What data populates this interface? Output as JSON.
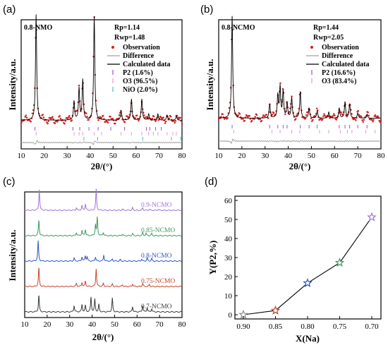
{
  "chart_data": [
    {
      "panel": "(a)",
      "type": "line",
      "sample_label": "0.8-NMO",
      "xlabel": "2θ/(°)",
      "ylabel": "Intensity/a.u.",
      "xlim": [
        10,
        80
      ],
      "x_ticks": [
        "10",
        "20",
        "30",
        "40",
        "50",
        "60",
        "70",
        "80"
      ],
      "fit_stats": [
        "Rp=1.14",
        "Rwp=1.48"
      ],
      "legend_placement": "top-right",
      "legend": [
        {
          "label": "Observation",
          "kind": "dot",
          "color": "#d42020"
        },
        {
          "label": "Difference",
          "kind": "line",
          "color": "#a0a0a0"
        },
        {
          "label": "Calculated data",
          "kind": "line",
          "color": "#000000"
        },
        {
          "label": "P2 (1.6%)",
          "kind": "tick",
          "color": "#9a4fd0"
        },
        {
          "label": "O3 (96.5%)",
          "kind": "tick",
          "color": "#e39ad8"
        },
        {
          "label": "NiO (2.0%)",
          "kind": "tick",
          "color": "#4fb8c8"
        }
      ],
      "peaks": [
        [
          16.5,
          1.0
        ],
        [
          33.0,
          0.18
        ],
        [
          35.2,
          0.3
        ],
        [
          36.8,
          0.38
        ],
        [
          41.8,
          0.98
        ],
        [
          53.5,
          0.09
        ],
        [
          58.0,
          0.2
        ],
        [
          62.5,
          0.2
        ],
        [
          65.5,
          0.06
        ],
        [
          69.5,
          0.06
        ],
        [
          73.5,
          0.05
        ],
        [
          77.5,
          0.04
        ]
      ],
      "tick_rows": [
        {
          "color": "#9a4fd0",
          "positions": [
            16.0,
            32.5,
            35.5,
            39.5,
            43.5,
            49.0,
            55.0,
            64.5,
            66.0,
            68.5,
            71.0
          ]
        },
        {
          "color": "#e39ad8",
          "positions": [
            16.5,
            33.0,
            35.2,
            36.8,
            41.8,
            45.0,
            53.5,
            58.0,
            62.5,
            65.5,
            67.5,
            69.5,
            73.5,
            76.0,
            77.5
          ]
        },
        {
          "color": "#4fb8c8",
          "positions": [
            37.3,
            43.3,
            62.9,
            75.4,
            79.4
          ]
        }
      ]
    },
    {
      "panel": "(b)",
      "type": "line",
      "sample_label": "0.8-NCMO",
      "xlabel": "2θ/(°)",
      "ylabel": "Intensity/a.u.",
      "xlim": [
        10,
        80
      ],
      "x_ticks": [
        "10",
        "20",
        "30",
        "40",
        "50",
        "60",
        "70",
        "80"
      ],
      "fit_stats": [
        "Rp=1.44",
        "Rwp=2.05"
      ],
      "legend_placement": "top-right",
      "legend": [
        {
          "label": "Observation",
          "kind": "dot",
          "color": "#d42020"
        },
        {
          "label": "Difference",
          "kind": "line",
          "color": "#a0a0a0"
        },
        {
          "label": "Calculated data",
          "kind": "line",
          "color": "#000000"
        },
        {
          "label": "P2 (16.6%)",
          "kind": "tick",
          "color": "#9a4fd0"
        },
        {
          "label": "O3 (83.4%)",
          "kind": "tick",
          "color": "#e39ad8"
        }
      ],
      "peaks": [
        [
          15.8,
          1.0
        ],
        [
          32.0,
          0.14
        ],
        [
          35.5,
          0.22
        ],
        [
          36.5,
          0.3
        ],
        [
          37.8,
          0.26
        ],
        [
          39.5,
          0.15
        ],
        [
          41.5,
          0.2
        ],
        [
          45.2,
          0.26
        ],
        [
          49.0,
          0.1
        ],
        [
          52.5,
          0.07
        ],
        [
          57.5,
          0.06
        ],
        [
          62.0,
          0.1
        ],
        [
          64.5,
          0.16
        ],
        [
          66.5,
          0.14
        ],
        [
          70.0,
          0.05
        ],
        [
          74.0,
          0.04
        ]
      ],
      "tick_rows": [
        {
          "color": "#9a4fd0",
          "positions": [
            15.8,
            32.0,
            35.5,
            37.8,
            39.5,
            45.2,
            49.0,
            52.5,
            62.0,
            64.5,
            66.5,
            70.0,
            74.0
          ]
        },
        {
          "color": "#e39ad8",
          "positions": [
            16.5,
            33.0,
            36.5,
            41.5,
            45.0,
            53.5,
            57.5,
            62.5,
            65.5,
            67.5,
            73.5,
            77.5
          ]
        }
      ]
    },
    {
      "panel": "(c)",
      "type": "line",
      "xlabel": "2θ/(°)",
      "ylabel": "Intensity/a.u.",
      "xlim": [
        10,
        80
      ],
      "x_ticks": [
        "10",
        "20",
        "30",
        "40",
        "50",
        "60",
        "70",
        "80"
      ],
      "series": [
        {
          "name": "0.7-NCMO",
          "color": "#3a3a3a",
          "peaks": [
            [
              16.3,
              0.8
            ],
            [
              32.0,
              0.3
            ],
            [
              35.5,
              0.35
            ],
            [
              37.0,
              0.3
            ],
            [
              39.5,
              0.7
            ],
            [
              41.2,
              0.6
            ],
            [
              43.0,
              0.35
            ],
            [
              49.0,
              0.65
            ],
            [
              58.0,
              0.25
            ],
            [
              62.5,
              0.3
            ],
            [
              64.5,
              0.2
            ],
            [
              66.5,
              0.15
            ]
          ]
        },
        {
          "name": "0.75-NCMO",
          "color": "#c8442e",
          "peaks": [
            [
              16.3,
              0.9
            ],
            [
              33.0,
              0.15
            ],
            [
              35.5,
              0.2
            ],
            [
              37.0,
              0.25
            ],
            [
              41.8,
              0.85
            ],
            [
              45.0,
              0.15
            ],
            [
              49.0,
              0.12
            ],
            [
              53.5,
              0.08
            ],
            [
              58.0,
              0.12
            ],
            [
              62.5,
              0.15
            ],
            [
              65.5,
              0.1
            ]
          ]
        },
        {
          "name": "0.8-NCMO",
          "color": "#2f56c2",
          "peaks": [
            [
              16.0,
              0.95
            ],
            [
              32.0,
              0.15
            ],
            [
              35.5,
              0.2
            ],
            [
              37.0,
              0.25
            ],
            [
              37.8,
              0.2
            ],
            [
              41.5,
              0.2
            ],
            [
              45.2,
              0.28
            ],
            [
              49.0,
              0.1
            ],
            [
              52.5,
              0.07
            ],
            [
              62.0,
              0.1
            ],
            [
              64.5,
              0.15
            ],
            [
              66.5,
              0.12
            ]
          ]
        },
        {
          "name": "0.85-NCMO",
          "color": "#3d9a5a",
          "peaks": [
            [
              16.3,
              0.75
            ],
            [
              33.0,
              0.15
            ],
            [
              35.5,
              0.25
            ],
            [
              37.0,
              0.3
            ],
            [
              41.5,
              0.5
            ],
            [
              42.3,
              0.85
            ],
            [
              45.0,
              0.15
            ],
            [
              53.5,
              0.08
            ],
            [
              58.0,
              0.1
            ],
            [
              62.5,
              0.15
            ],
            [
              64.0,
              0.12
            ],
            [
              66.5,
              0.1
            ]
          ]
        },
        {
          "name": "0.9-NCMO",
          "color": "#a074d6",
          "peaks": [
            [
              16.5,
              1.0
            ],
            [
              33.0,
              0.12
            ],
            [
              35.5,
              0.22
            ],
            [
              37.0,
              0.3
            ],
            [
              41.8,
              1.0
            ],
            [
              53.5,
              0.06
            ],
            [
              58.0,
              0.12
            ],
            [
              62.5,
              0.12
            ],
            [
              65.5,
              0.06
            ],
            [
              69.5,
              0.05
            ]
          ]
        }
      ]
    },
    {
      "panel": "(d)",
      "type": "scatter",
      "xlabel": "X(Na)",
      "ylabel": "Y(P2,%)",
      "categories": [
        "0.90",
        "0.85",
        "0.80",
        "0.75",
        "0.70"
      ],
      "values": [
        0,
        2.2,
        16.6,
        27.3,
        51.2
      ],
      "ylim": [
        0,
        60
      ],
      "y_ticks": [
        "0",
        "10",
        "20",
        "30",
        "40",
        "50",
        "60"
      ],
      "point_colors": [
        "#8a8a8a",
        "#c8442e",
        "#2f56c2",
        "#3d9a5a",
        "#a074d6"
      ],
      "marker": "star"
    }
  ]
}
